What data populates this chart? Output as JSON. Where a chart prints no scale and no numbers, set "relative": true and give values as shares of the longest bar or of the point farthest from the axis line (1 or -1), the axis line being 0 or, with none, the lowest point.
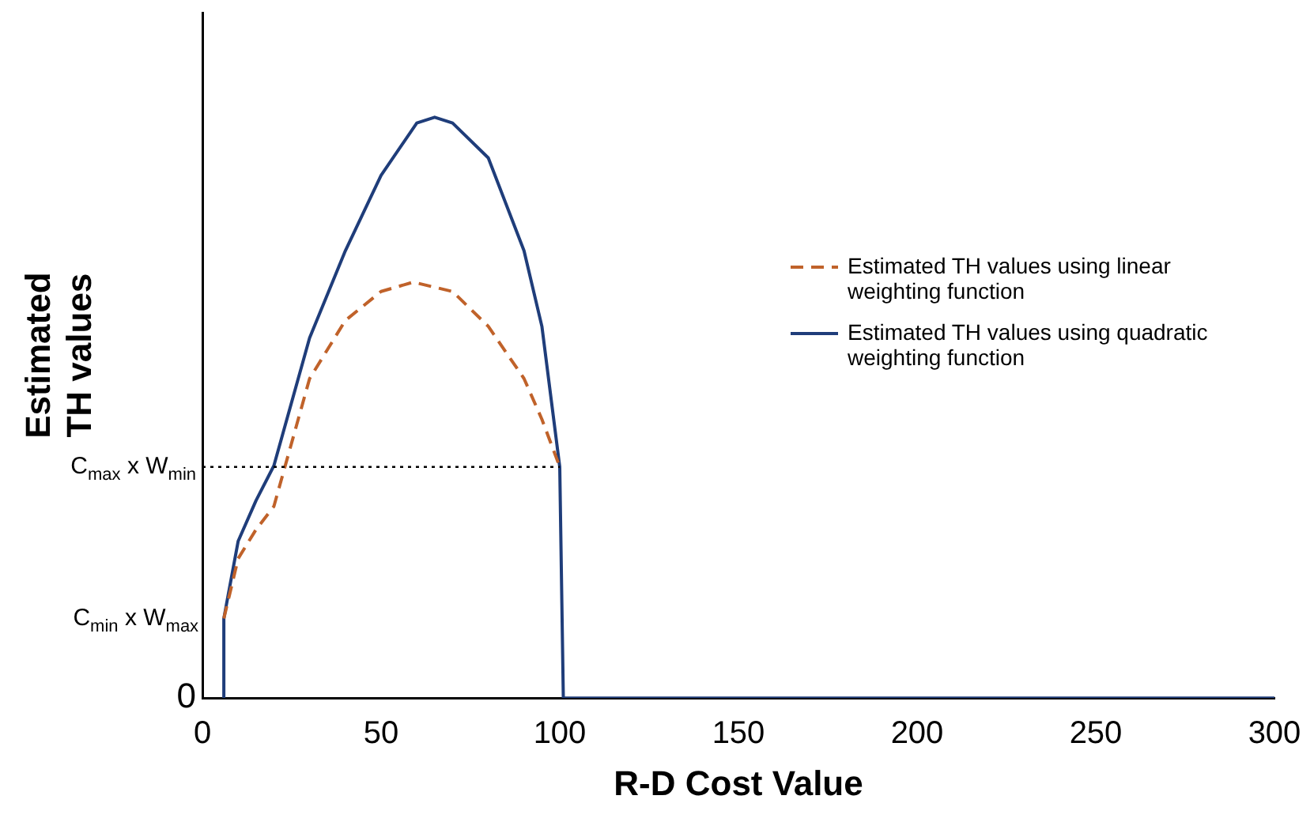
{
  "chart_data": {
    "type": "line",
    "relative": true,
    "annotations": [
      "0",
      {
        "text": "C$_{min}$ x W$_{max}$",
        "x": 6,
        "y": 0.137
      }
    ],
    "xlabel": "R-D Cost Value",
    "ylabel": "Estimated TH values",
    "xlim": [
      0,
      300
    ],
    "xticks": [
      0,
      50,
      100,
      150,
      200,
      250,
      300
    ],
    "grid": false,
    "legend": "right",
    "marker": "none",
    "series": [
      {
        "name": "Estimated TH values using linear weighting function",
        "color": "#c0622a",
        "line_style": "dashed",
        "x": [
          6,
          10,
          15,
          20,
          30,
          40,
          50,
          59,
          70,
          80,
          90,
          95,
          100
        ],
        "values": [
          0.137,
          0.24,
          0.29,
          0.33,
          0.55,
          0.65,
          0.7,
          0.716,
          0.7,
          0.64,
          0.55,
          0.48,
          0.398
        ]
      },
      {
        "name": "Estimated TH values using quadratic weighting function",
        "color": "#1f3d7a",
        "line_style": "solid",
        "x": [
          6,
          6,
          10,
          15,
          20,
          30,
          40,
          50,
          60,
          65,
          70,
          80,
          90,
          95,
          100,
          101,
          300
        ],
        "values": [
          0,
          0.137,
          0.27,
          0.34,
          0.4,
          0.62,
          0.77,
          0.9,
          0.99,
          1,
          0.99,
          0.93,
          0.77,
          0.64,
          0.398,
          0,
          0
        ]
      }
    ],
    "ref_lines": [
      {
        "axis": "y",
        "value": 0.398,
        "label": "C$_{max}$ x W$_{min}$",
        "line_style": "dotted",
        "color": "#000000"
      }
    ]
  }
}
